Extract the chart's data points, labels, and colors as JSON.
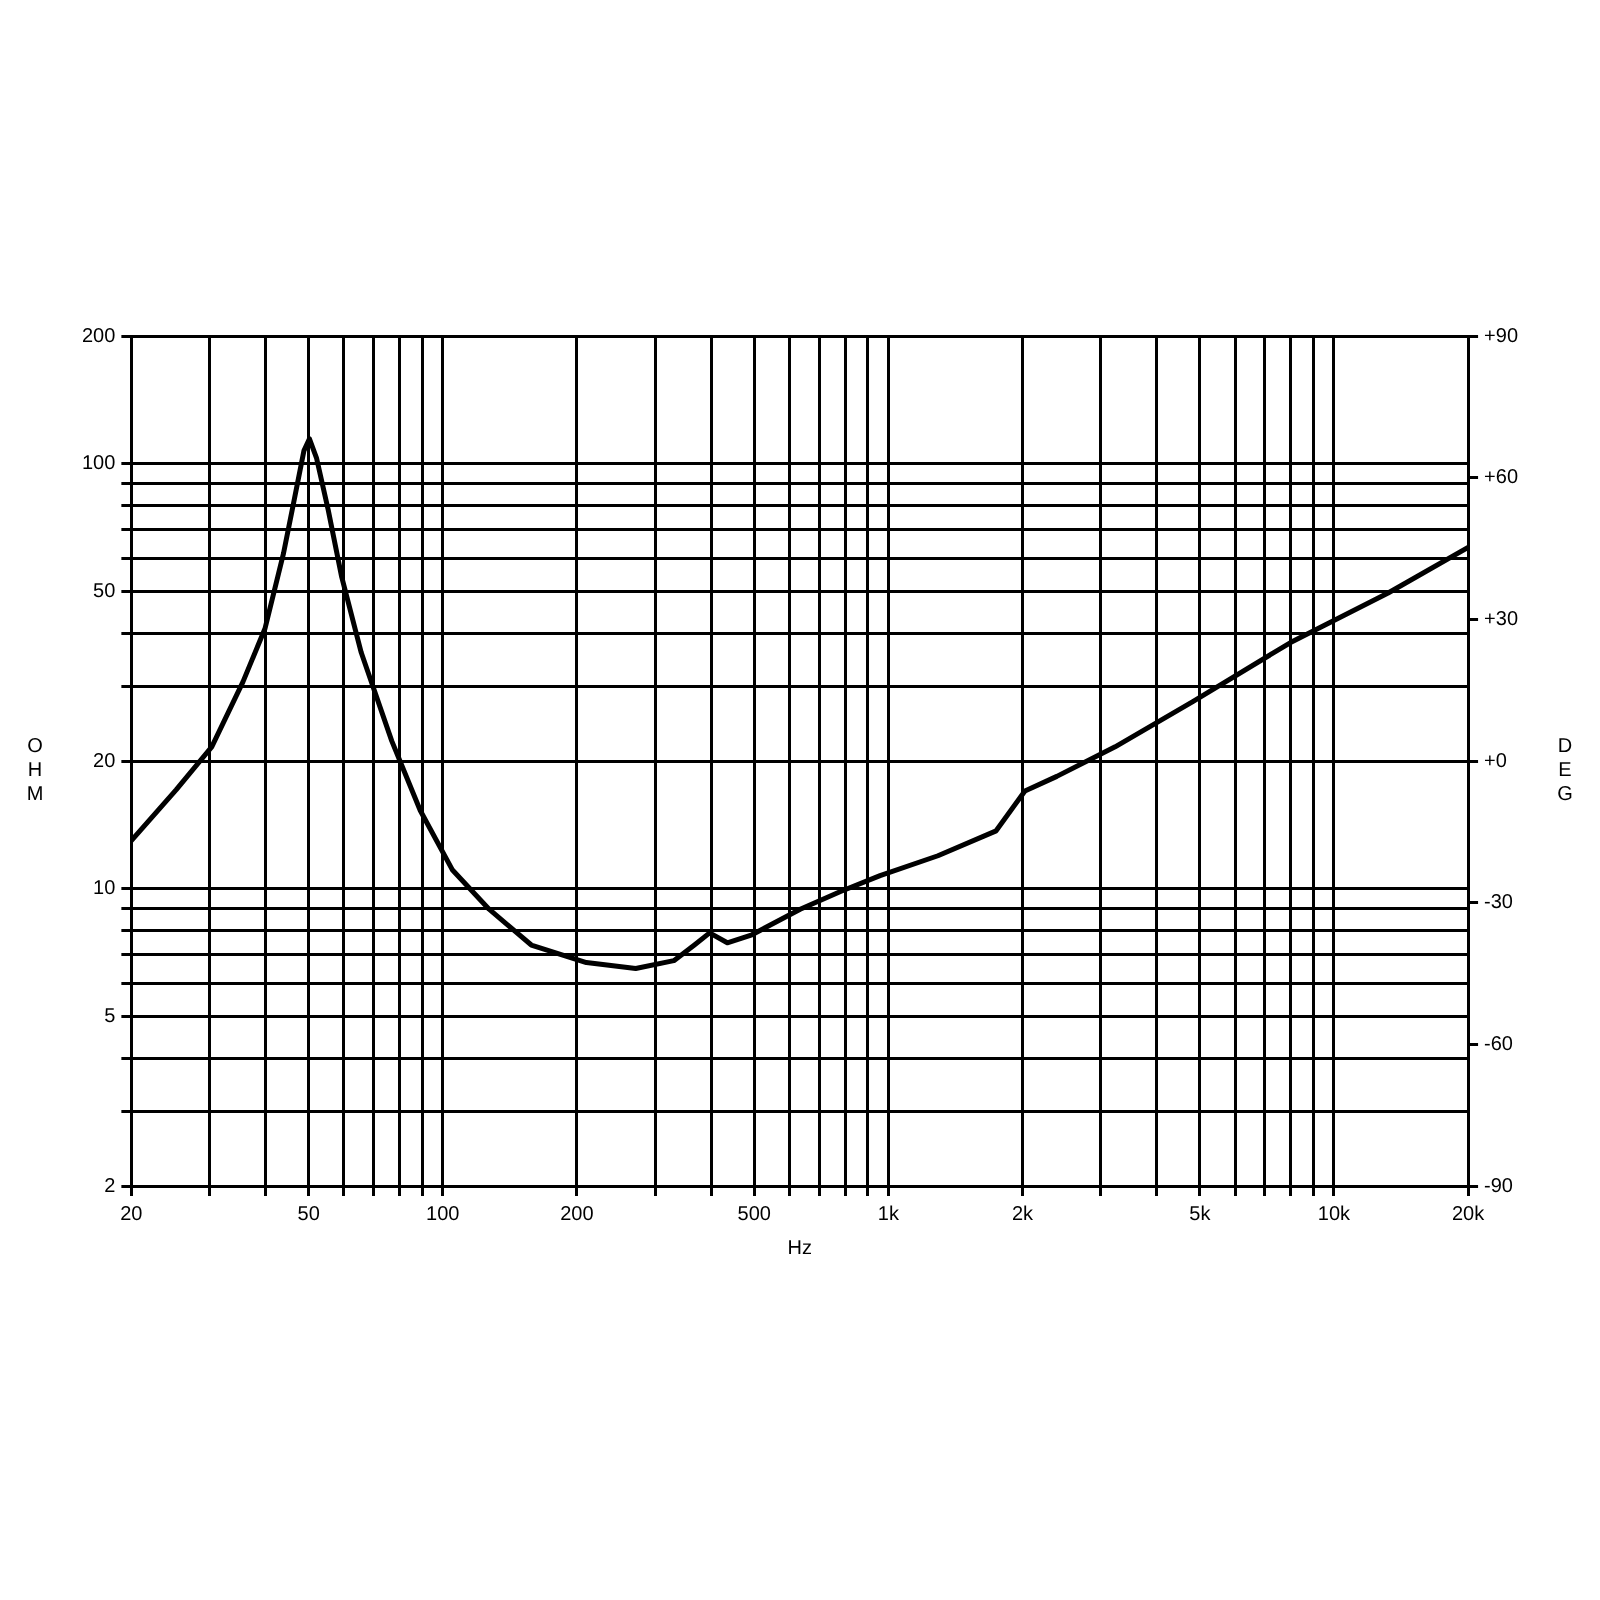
{
  "chart_data": {
    "type": "line",
    "xlabel": "Hz",
    "ylabel": "OHM",
    "y2label": "DEG",
    "log": "xy",
    "grid": true,
    "legend": false,
    "marker": "none",
    "line_style": "solid",
    "x": [
      20,
      25.2,
      30.3,
      35.6,
      39.9,
      43.9,
      46.2,
      48.8,
      50.2,
      52.1,
      55.3,
      59.3,
      65.6,
      76.8,
      89,
      105,
      127,
      158,
      210,
      271,
      330,
      367,
      397,
      435,
      494,
      634,
      781,
      958,
      1292,
      1745,
      2025,
      2388,
      3228,
      4822,
      7990,
      13230,
      20000
    ],
    "series": [
      {
        "color": "#000000",
        "values": [
          13,
          17.1,
          21.6,
          30.7,
          41,
          61.6,
          80.5,
          107.5,
          114.6,
          103,
          78,
          54.2,
          36,
          22.3,
          15.3,
          11.1,
          8.96,
          7.38,
          6.71,
          6.5,
          6.78,
          7.38,
          7.88,
          7.47,
          7.8,
          8.96,
          9.86,
          10.75,
          11.97,
          13.7,
          17,
          18.4,
          21.6,
          27.6,
          38,
          49.7,
          63.6
        ]
      }
    ],
    "xlim": [
      20,
      20000
    ],
    "xticks": [
      20,
      {
        "value": 30,
        "label": null
      },
      {
        "value": 40,
        "label": null
      },
      50,
      {
        "value": 60,
        "label": null
      },
      {
        "value": 70,
        "label": null
      },
      {
        "value": 80,
        "label": null
      },
      {
        "value": 90,
        "label": null
      },
      100,
      200,
      {
        "value": 300,
        "label": null
      },
      {
        "value": 400,
        "label": null
      },
      500,
      {
        "value": 600,
        "label": null
      },
      {
        "value": 700,
        "label": null
      },
      {
        "value": 800,
        "label": null
      },
      {
        "value": 900,
        "label": null
      },
      {
        "value": 1000,
        "label": "1k"
      },
      {
        "value": 2000,
        "label": "2k"
      },
      {
        "value": 3000,
        "label": null
      },
      {
        "value": 4000,
        "label": null
      },
      {
        "value": 5000,
        "label": "5k"
      },
      {
        "value": 6000,
        "label": null
      },
      {
        "value": 7000,
        "label": null
      },
      {
        "value": 8000,
        "label": null
      },
      {
        "value": 9000,
        "label": null
      },
      {
        "value": 10000,
        "label": "10k"
      },
      {
        "value": 20000,
        "label": "20k"
      }
    ],
    "ylim": [
      2,
      200
    ],
    "yticks": [
      2,
      {
        "value": 3,
        "label": null
      },
      {
        "value": 4,
        "label": null
      },
      5,
      {
        "value": 6,
        "label": null
      },
      {
        "value": 7,
        "label": null
      },
      {
        "value": 8,
        "label": null
      },
      {
        "value": 9,
        "label": null
      },
      10,
      20,
      {
        "value": 30,
        "label": null
      },
      {
        "value": 40,
        "label": null
      },
      50,
      {
        "value": 60,
        "label": null
      },
      {
        "value": 70,
        "label": null
      },
      {
        "value": 80,
        "label": null
      },
      {
        "value": 90,
        "label": null
      },
      100,
      200
    ],
    "y2lim": [
      -90,
      90
    ],
    "y2ticks": [
      -90,
      -60,
      -30,
      {
        "value": 0,
        "label": "+0"
      },
      {
        "value": 30,
        "label": "+30"
      },
      {
        "value": 60,
        "label": "+60"
      },
      {
        "value": 90,
        "label": "+90"
      }
    ]
  }
}
